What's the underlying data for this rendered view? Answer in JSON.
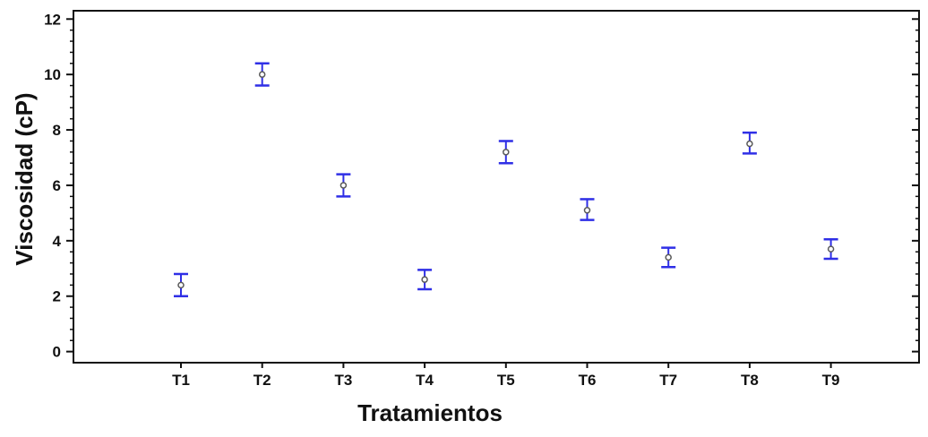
{
  "chart_data": {
    "type": "scatter",
    "xlabel": "Tratamientos",
    "ylabel": "Viscosidad (cP)",
    "categories": [
      "T1",
      "T2",
      "T3",
      "T4",
      "T5",
      "T6",
      "T7",
      "T8",
      "T9"
    ],
    "means": [
      2.4,
      10.0,
      6.0,
      2.6,
      7.2,
      5.1,
      3.4,
      7.5,
      3.7
    ],
    "lower": [
      2.0,
      9.6,
      5.6,
      2.25,
      6.8,
      4.75,
      3.05,
      7.15,
      3.35
    ],
    "upper": [
      2.8,
      10.4,
      6.4,
      2.95,
      7.6,
      5.5,
      3.75,
      7.9,
      4.05
    ],
    "ylim": [
      -0.4,
      12.3
    ],
    "yticks": [
      0,
      2,
      4,
      6,
      8,
      10,
      12
    ],
    "grid": false,
    "legend": "none",
    "colors": {
      "errorbar": "#2f2fe6",
      "marker": "#5a5a5a",
      "axis": "#111111"
    }
  }
}
